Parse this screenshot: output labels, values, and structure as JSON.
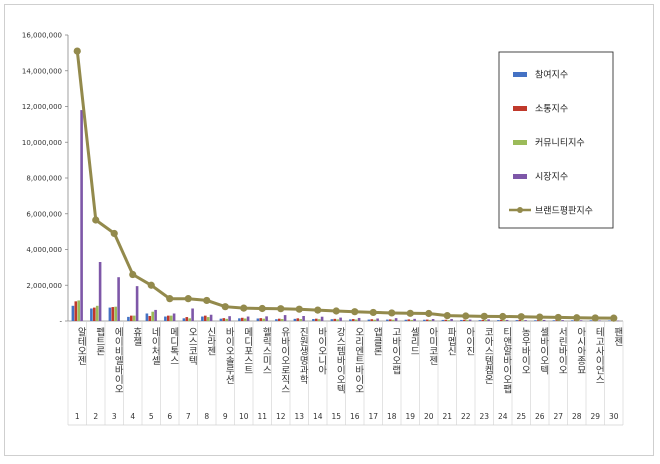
{
  "chart_data": {
    "type": "bar",
    "title": "",
    "xlabel": "",
    "ylabel": "",
    "ylim": [
      0,
      16000000
    ],
    "yticks": [
      0,
      2000000,
      4000000,
      6000000,
      8000000,
      10000000,
      12000000,
      14000000,
      16000000
    ],
    "ytick_labels": [
      "-",
      "2,000,000",
      "4,000,000",
      "6,000,000",
      "8,000,000",
      "10,000,000",
      "12,000,000",
      "14,000,000",
      "16,000,000"
    ],
    "legend_position": "right",
    "grid": false,
    "categories": [
      "알테오젠",
      "펩트론",
      "에이비엘바이오",
      "휴젤",
      "네이처셀",
      "메디톡스",
      "오스코텍",
      "신라젠",
      "바이오솔루션",
      "메디포스트",
      "헬릭스미스",
      "유바이오로직스",
      "진원생명과학",
      "바이오니아",
      "강스템바이오텍",
      "오리엔트바이오",
      "앱클론",
      "고바이오랩",
      "셀리드",
      "아미코젠",
      "파멥신",
      "아이진",
      "코아스템켐온",
      "티앤알바이오팹",
      "농우바이오",
      "셀바이오텍",
      "서린바이오",
      "아시아종묘",
      "테고사이언스",
      "팬젠"
    ],
    "ranks": [
      "1",
      "2",
      "3",
      "4",
      "5",
      "6",
      "7",
      "8",
      "9",
      "10",
      "11",
      "12",
      "13",
      "14",
      "15",
      "16",
      "17",
      "18",
      "19",
      "20",
      "21",
      "22",
      "23",
      "24",
      "25",
      "26",
      "27",
      "28",
      "29",
      "30"
    ],
    "series": [
      {
        "name": "참여지수",
        "type": "bar",
        "color": "#4472c4",
        "values": [
          850000,
          700000,
          750000,
          230000,
          420000,
          250000,
          150000,
          250000,
          130000,
          150000,
          140000,
          100000,
          120000,
          110000,
          100000,
          90000,
          80000,
          80000,
          70000,
          70000,
          60000,
          60000,
          50000,
          50000,
          50000,
          40000,
          40000,
          40000,
          40000,
          30000
        ]
      },
      {
        "name": "소통지수",
        "type": "bar",
        "color": "#c0392b",
        "values": [
          1100000,
          750000,
          780000,
          300000,
          280000,
          300000,
          220000,
          300000,
          160000,
          180000,
          160000,
          130000,
          150000,
          130000,
          120000,
          110000,
          100000,
          90000,
          90000,
          80000,
          70000,
          70000,
          60000,
          60000,
          60000,
          50000,
          50000,
          50000,
          40000,
          40000
        ]
      },
      {
        "name": "커뮤니티지수",
        "type": "bar",
        "color": "#9bbb59",
        "values": [
          1150000,
          850000,
          800000,
          300000,
          520000,
          300000,
          150000,
          220000,
          120000,
          140000,
          130000,
          110000,
          110000,
          100000,
          90000,
          80000,
          70000,
          70000,
          60000,
          60000,
          50000,
          50000,
          50000,
          50000,
          40000,
          40000,
          40000,
          30000,
          30000,
          30000
        ]
      },
      {
        "name": "시장지수",
        "type": "bar",
        "color": "#7e57a8",
        "values": [
          11800000,
          3300000,
          2450000,
          1950000,
          620000,
          420000,
          700000,
          350000,
          270000,
          250000,
          260000,
          330000,
          280000,
          240000,
          190000,
          170000,
          140000,
          160000,
          120000,
          110000,
          110000,
          80000,
          90000,
          60000,
          50000,
          60000,
          50000,
          40000,
          30000,
          20000
        ]
      },
      {
        "name": "브랜드평판지수",
        "type": "line",
        "color": "#938a4c",
        "values": [
          15100000,
          5650000,
          4900000,
          2600000,
          2000000,
          1250000,
          1250000,
          1150000,
          800000,
          720000,
          700000,
          690000,
          660000,
          610000,
          560000,
          520000,
          480000,
          450000,
          430000,
          420000,
          300000,
          280000,
          260000,
          250000,
          240000,
          220000,
          200000,
          180000,
          170000,
          160000
        ]
      }
    ]
  }
}
